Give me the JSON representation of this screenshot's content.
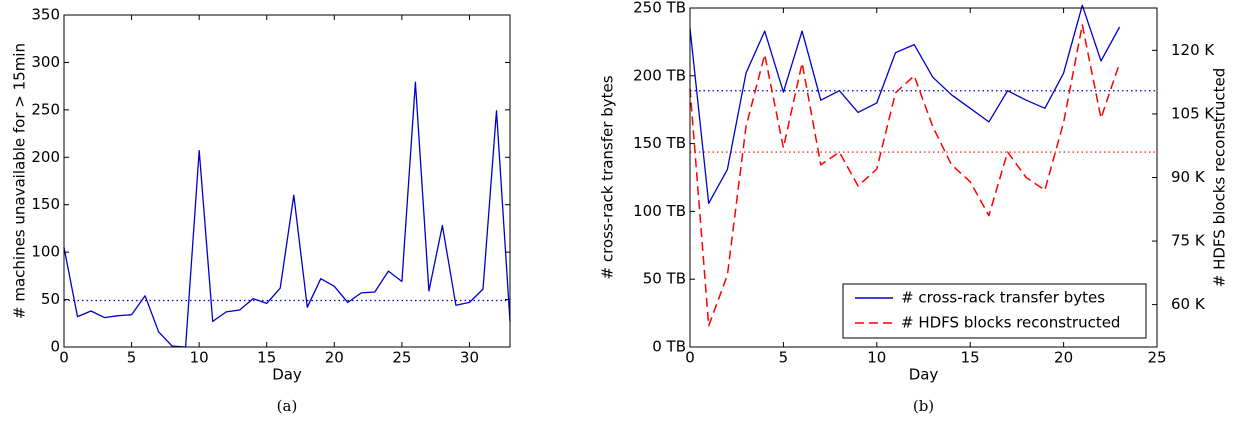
{
  "chart_data": [
    {
      "type": "line",
      "caption": "(a)",
      "xlabel": "Day",
      "ylabel": "# machines unavailable for > 15min",
      "xlim": [
        0,
        33
      ],
      "ylim": [
        0,
        350
      ],
      "xticks": [
        0,
        5,
        10,
        15,
        20,
        25,
        30
      ],
      "yticks": [
        0,
        50,
        100,
        150,
        200,
        250,
        300,
        350
      ],
      "grid": false,
      "series": [
        {
          "color": "#0000cc",
          "style": "solid",
          "x": [
            0,
            1,
            2,
            3,
            4,
            5,
            6,
            7,
            8,
            9,
            10,
            11,
            12,
            13,
            14,
            15,
            16,
            17,
            18,
            19,
            20,
            21,
            22,
            23,
            24,
            25,
            26,
            27,
            28,
            29,
            30,
            31,
            32,
            33
          ],
          "values": [
            105,
            32,
            38,
            31,
            33,
            34,
            54,
            16,
            1,
            0,
            207,
            27,
            37,
            39,
            51,
            46,
            62,
            160,
            42,
            72,
            64,
            47,
            57,
            58,
            80,
            69,
            279,
            59,
            128,
            44,
            47,
            61,
            249,
            27
          ]
        }
      ],
      "reference_lines": [
        {
          "y": 49,
          "color": "#0000cc",
          "style": "dotted"
        }
      ]
    },
    {
      "type": "line",
      "caption": "(b)",
      "xlabel": "Day",
      "ylabel": "# cross-rack transfer bytes",
      "y2label": "# HDFS blocks reconstructed",
      "xlim": [
        0,
        25
      ],
      "ylim": [
        0,
        250
      ],
      "y2lim": [
        50,
        130
      ],
      "xticks": [
        0,
        5,
        10,
        15,
        20,
        25
      ],
      "yticks": [
        0,
        50,
        100,
        150,
        200,
        250
      ],
      "ytick_labels": [
        "0 TB",
        "50 TB",
        "100 TB",
        "150 TB",
        "200 TB",
        "250 TB"
      ],
      "y2ticks": [
        60,
        75,
        90,
        105,
        120
      ],
      "y2tick_labels": [
        "60 K",
        "75 K",
        "90 K",
        "105 K",
        "120 K"
      ],
      "grid": false,
      "legend_position": "bottom-right",
      "series": [
        {
          "name": "# cross-rack transfer bytes",
          "axis": "left",
          "color": "#0000cc",
          "style": "solid",
          "x": [
            0,
            1,
            2,
            3,
            4,
            5,
            6,
            7,
            8,
            9,
            10,
            11,
            12,
            13,
            14,
            15,
            16,
            17,
            18,
            19,
            20,
            21,
            22,
            23
          ],
          "values": [
            235,
            106,
            131,
            202,
            233,
            188,
            233,
            182,
            189,
            173,
            180,
            217,
            223,
            199,
            186,
            176,
            166,
            189,
            182,
            176,
            202,
            252,
            211,
            236
          ]
        },
        {
          "name": "# HDFS blocks reconstructed",
          "axis": "right",
          "color": "#ff0000",
          "style": "dashed",
          "x": [
            0,
            1,
            2,
            3,
            4,
            5,
            6,
            7,
            8,
            9,
            10,
            11,
            12,
            13,
            14,
            15,
            16,
            17,
            18,
            19,
            20,
            21,
            22,
            23
          ],
          "values": [
            111,
            55,
            67,
            102,
            119,
            97,
            117,
            93,
            96,
            88,
            92,
            110,
            114,
            102,
            93,
            89,
            81,
            96,
            90,
            87,
            103,
            126,
            104,
            117
          ]
        }
      ],
      "reference_lines": [
        {
          "axis": "left",
          "y": 189,
          "color": "#0000cc",
          "style": "dotted"
        },
        {
          "axis": "right",
          "y": 96,
          "color": "#ff0000",
          "style": "dotted"
        }
      ]
    }
  ]
}
